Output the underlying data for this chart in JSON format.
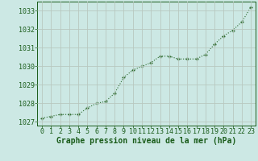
{
  "x": [
    0,
    1,
    2,
    3,
    4,
    5,
    6,
    7,
    8,
    9,
    10,
    11,
    12,
    13,
    14,
    15,
    16,
    17,
    18,
    19,
    20,
    21,
    22,
    23
  ],
  "y": [
    1027.2,
    1027.3,
    1027.4,
    1027.4,
    1027.4,
    1027.75,
    1028.0,
    1028.1,
    1028.55,
    1029.4,
    1029.8,
    1030.0,
    1030.2,
    1030.55,
    1030.55,
    1030.4,
    1030.4,
    1030.4,
    1030.65,
    1031.2,
    1031.65,
    1031.95,
    1032.4,
    1033.2
  ],
  "line_color": "#2d6a2d",
  "bg_color": "#cce8e4",
  "grid_color": "#b8c8c0",
  "xlabel": "Graphe pression niveau de la mer (hPa)",
  "tick_color": "#1a5c1a",
  "ylim": [
    1026.8,
    1033.5
  ],
  "yticks": [
    1027,
    1028,
    1029,
    1030,
    1031,
    1032,
    1033
  ],
  "xticks": [
    0,
    1,
    2,
    3,
    4,
    5,
    6,
    7,
    8,
    9,
    10,
    11,
    12,
    13,
    14,
    15,
    16,
    17,
    18,
    19,
    20,
    21,
    22,
    23
  ],
  "tick_fontsize": 6,
  "label_fontsize": 7
}
